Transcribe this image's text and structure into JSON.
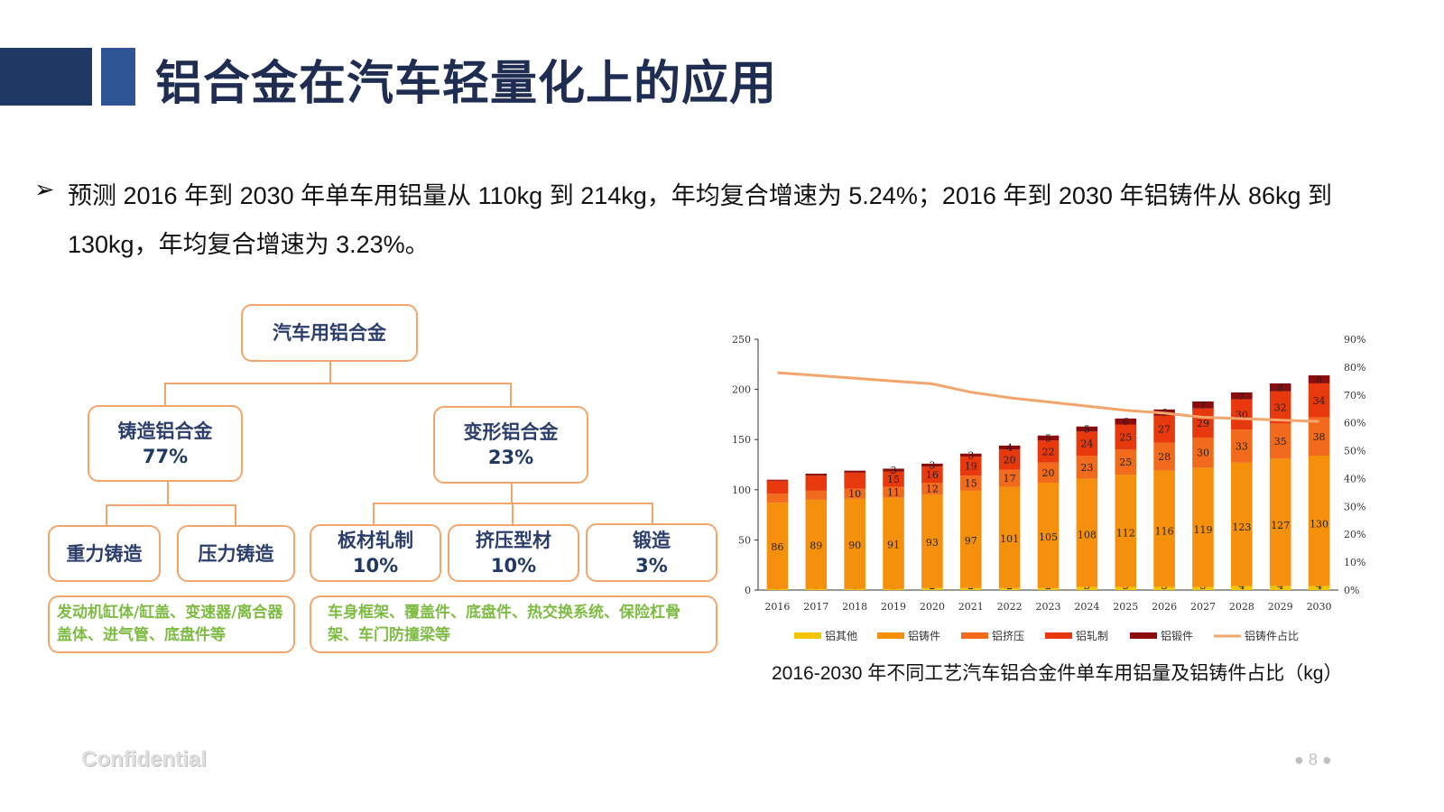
{
  "slide": {
    "title": "铝合金在汽车轻量化上的应用",
    "bullet_mark": "➢",
    "paragraph": "预测 2016 年到 2030 年单车用铝量从 110kg 到 214kg，年均复合增速为 5.24%；2016 年到 2030 年铝铸件从 86kg 到 130kg，年均复合增速为 3.23%。",
    "footer_watermark": "Confidential",
    "page_number": "● 8 ●"
  },
  "diagram": {
    "root": "汽车用铝合金",
    "cast": {
      "label": "铸造铝合金",
      "pct": "77%"
    },
    "wrought": {
      "label": "变形铝合金",
      "pct": "23%"
    },
    "gravity": "重力铸造",
    "pressure": "压力铸造",
    "sheet": {
      "label": "板材轧制",
      "pct": "10%"
    },
    "extrusion": {
      "label": "挤压型材",
      "pct": "10%"
    },
    "forging": {
      "label": "锻造",
      "pct": "3%"
    },
    "cast_apps": "发动机缸体/缸盖、变速器/离合器盖体、进气管、底盘件等",
    "wrought_apps": "车身框架、覆盖件、底盘件、热交换系统、保险杠骨架、车门防撞梁等"
  },
  "chart_caption": "2016-2030 年不同工艺汽车铝合金件单车用铝量及铝铸件占比（kg）",
  "colors": {
    "other": "#f5c400",
    "cast": "#f4900c",
    "extruded": "#f26a1b",
    "rolled": "#e8380d",
    "forged": "#8b0c0c",
    "ratio_line": "#f4a56b",
    "title_dark": "#1f3864",
    "box_border": "#f4a56b",
    "app_text": "#7dbb42"
  },
  "chart_data": {
    "type": "bar",
    "stacked": true,
    "categories": [
      "2016",
      "2017",
      "2018",
      "2019",
      "2020",
      "2021",
      "2022",
      "2023",
      "2024",
      "2025",
      "2026",
      "2027",
      "2028",
      "2029",
      "2030"
    ],
    "ylim": [
      0,
      250
    ],
    "y_ticks": [
      "0",
      "50",
      "100",
      "150",
      "200",
      "250"
    ],
    "y2lim": [
      0,
      90
    ],
    "y2_ticks": [
      "0%",
      "10%",
      "20%",
      "30%",
      "40%",
      "50%",
      "60%",
      "70%",
      "80%",
      "90%"
    ],
    "series": [
      {
        "name": "铝其他",
        "values": [
          1,
          1,
          1,
          1,
          2,
          2,
          2,
          2,
          3,
          3,
          3,
          3,
          4,
          4,
          4
        ]
      },
      {
        "name": "铝铸件",
        "values": [
          86,
          89,
          90,
          91,
          93,
          97,
          101,
          105,
          108,
          112,
          116,
          119,
          123,
          127,
          130
        ]
      },
      {
        "name": "铝挤压",
        "values": [
          9,
          9,
          10,
          11,
          12,
          15,
          17,
          20,
          23,
          25,
          28,
          30,
          33,
          35,
          38
        ]
      },
      {
        "name": "铝轧制",
        "values": [
          13,
          15,
          16,
          15,
          16,
          19,
          20,
          22,
          24,
          25,
          27,
          29,
          30,
          32,
          34
        ]
      },
      {
        "name": "铝锻件",
        "values": [
          1,
          2,
          2,
          3,
          3,
          3,
          4,
          5,
          5,
          6,
          6,
          7,
          7,
          8,
          8
        ]
      }
    ],
    "labeled_values": {
      "铝其他": [
        "1",
        "1",
        "1",
        "1",
        "2",
        "2",
        "2",
        "2",
        "3",
        "3",
        "3",
        "3",
        "4",
        "4",
        "4"
      ],
      "铝铸件": [
        "86",
        "89",
        "90",
        "91",
        "93",
        "97",
        "101",
        "105",
        "108",
        "112",
        "116",
        "119",
        "123",
        "127",
        "130"
      ],
      "铝挤压": [
        "",
        "",
        "10",
        "11",
        "12",
        "15",
        "17",
        "20",
        "23",
        "25",
        "28",
        "30",
        "33",
        "35",
        "38"
      ],
      "铝轧制": [
        "",
        "",
        "",
        "15",
        "16",
        "19",
        "20",
        "22",
        "24",
        "25",
        "27",
        "29",
        "30",
        "32",
        "34"
      ],
      "铝锻件": [
        "",
        "",
        "",
        "3",
        "3",
        "3",
        "4",
        "5",
        "5",
        "6",
        "6",
        "7",
        "7",
        "8",
        "8"
      ]
    },
    "line": {
      "name": "铝铸件占比",
      "axis": "secondary",
      "values": [
        78,
        77,
        76,
        75,
        74,
        71,
        69,
        67.5,
        66,
        64.5,
        63.5,
        62,
        61.5,
        61,
        60.5
      ]
    },
    "legend_position": "bottom",
    "grid": false
  }
}
